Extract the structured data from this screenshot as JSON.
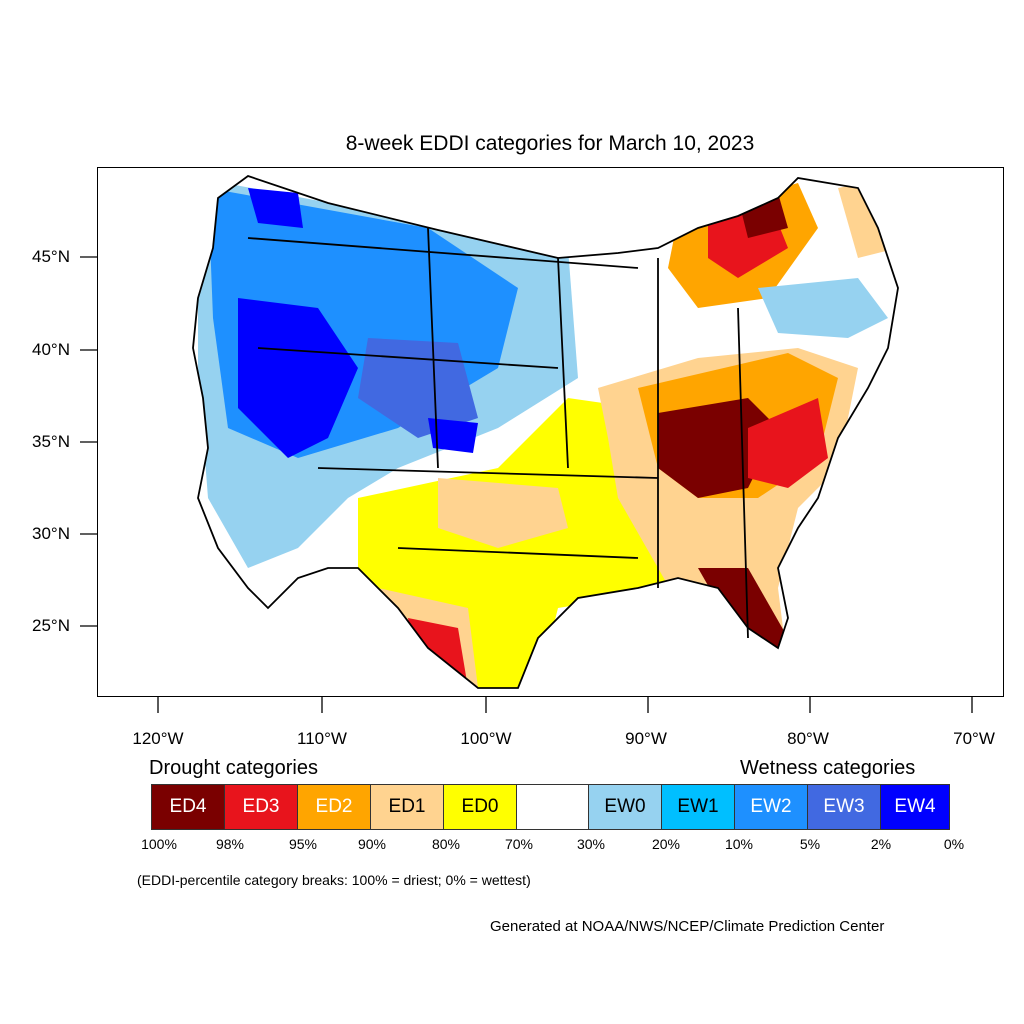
{
  "title": "8-week EDDI categories for March 10, 2023",
  "y_ticks": [
    "45°N",
    "40°N",
    "35°N",
    "30°N",
    "25°N"
  ],
  "x_ticks": [
    "120°W",
    "110°W",
    "100°W",
    "90°W",
    "80°W",
    "70°W"
  ],
  "legend": {
    "drought_heading": "Drought categories",
    "wetness_heading": "Wetness categories",
    "categories": [
      {
        "label": "ED4",
        "color": "#7a0000",
        "text_color": "#ffffff"
      },
      {
        "label": "ED3",
        "color": "#e8141c",
        "text_color": "#ffffff"
      },
      {
        "label": "ED2",
        "color": "#ffa500",
        "text_color": "#ffffff"
      },
      {
        "label": "ED1",
        "color": "#ffd390",
        "text_color": "#000000"
      },
      {
        "label": "ED0",
        "color": "#ffff00",
        "text_color": "#000000"
      },
      {
        "label": "",
        "color": "#ffffff",
        "text_color": "#000000"
      },
      {
        "label": "EW0",
        "color": "#96d2f0",
        "text_color": "#000000"
      },
      {
        "label": "EW1",
        "color": "#00bfff",
        "text_color": "#000000"
      },
      {
        "label": "EW2",
        "color": "#1e90ff",
        "text_color": "#ffffff"
      },
      {
        "label": "EW3",
        "color": "#4169e1",
        "text_color": "#ffffff"
      },
      {
        "label": "EW4",
        "color": "#0000ff",
        "text_color": "#ffffff"
      }
    ],
    "percentiles": [
      "100%",
      "98%",
      "95%",
      "90%",
      "80%",
      "70%",
      "30%",
      "20%",
      "10%",
      "5%",
      "2%",
      "0%"
    ]
  },
  "note": "(EDDI-percentile category breaks: 100% = driest; 0% = wettest)",
  "credit": "Generated at NOAA/NWS/NCEP/Climate Prediction Center"
}
